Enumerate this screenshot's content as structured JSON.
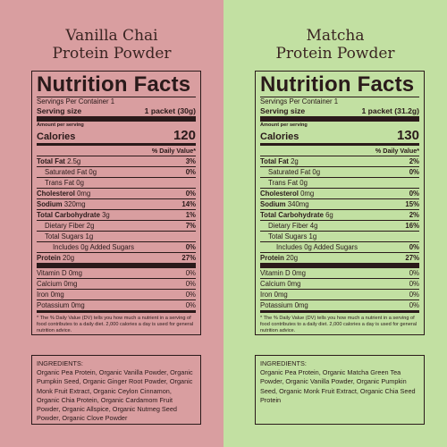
{
  "panels": [
    {
      "title_line1": "Vanilla Chai",
      "title_line2": "Protein Powder",
      "heading": "Nutrition Facts",
      "servings": "Servings Per Container 1",
      "serving_size_label": "Serving size",
      "serving_size_value": "1 packet (30g)",
      "amount_per_serving": "Amount per serving",
      "calories_label": "Calories",
      "calories_value": "120",
      "dv_header": "% Daily Value*",
      "rows": {
        "total_fat": {
          "label": "Total Fat",
          "amount": "2.5g",
          "dv": "3%"
        },
        "sat_fat": {
          "label": "Saturated Fat 0g",
          "dv": "0%"
        },
        "trans_fat": {
          "label": "Trans Fat 0g"
        },
        "cholesterol": {
          "label": "Cholesterol",
          "amount": "0mg",
          "dv": "0%"
        },
        "sodium": {
          "label": "Sodium",
          "amount": "320mg",
          "dv": "14%"
        },
        "carb": {
          "label": "Total Carbohydrate",
          "amount": "3g",
          "dv": "1%"
        },
        "fiber": {
          "label": "Dietary Fiber 2g",
          "dv": "7%"
        },
        "sugars": {
          "label": "Total Sugars 1g"
        },
        "added_sugars": {
          "label": "Includes 0g Added Sugars",
          "dv": "0%"
        },
        "protein": {
          "label": "Protein",
          "amount": "20g",
          "dv": "27%"
        },
        "vitd": {
          "label": "Vitamin D 0mg",
          "dv": "0%"
        },
        "calcium": {
          "label": "Calcium 0mg",
          "dv": "0%"
        },
        "iron": {
          "label": "Iron 0mg",
          "dv": "0%"
        },
        "potassium": {
          "label": "Potassium 0mg",
          "dv": "0%"
        }
      },
      "footnote": "* The % Daily Value (DV) tells you how much a nutrient in a serving of food contributes to a daily diet. 2,000 calories a day is used for general nutrition advice.",
      "ingredients_heading": "INGREDIENTS:",
      "ingredients_text": "Organic Pea Protein, Organic Vanilla Powder, Organic Pumpkin Seed, Organic Ginger Root Powder, Organic Monk Fruit Extract, Organic Ceylon Cinnamon, Organic Chia Protein, Organic Cardamom Fruit Powder, Organic Allspice, Organic Nutmeg Seed Powder, Organic Clove Powder"
    },
    {
      "title_line1": "Matcha",
      "title_line2": "Protein Powder",
      "heading": "Nutrition Facts",
      "servings": "Servings Per Container 1",
      "serving_size_label": "Serving size",
      "serving_size_value": "1 packet (31.2g)",
      "amount_per_serving": "Amount per serving",
      "calories_label": "Calories",
      "calories_value": "130",
      "dv_header": "% Daily Value*",
      "rows": {
        "total_fat": {
          "label": "Total Fat",
          "amount": "2g",
          "dv": "2%"
        },
        "sat_fat": {
          "label": "Saturated Fat 0g",
          "dv": "0%"
        },
        "trans_fat": {
          "label": "Trans Fat 0g"
        },
        "cholesterol": {
          "label": "Cholesterol",
          "amount": "0mg",
          "dv": "0%"
        },
        "sodium": {
          "label": "Sodium",
          "amount": "340mg",
          "dv": "15%"
        },
        "carb": {
          "label": "Total Carbohydrate",
          "amount": "6g",
          "dv": "2%"
        },
        "fiber": {
          "label": "Dietary Fiber 4g",
          "dv": "16%"
        },
        "sugars": {
          "label": "Total Sugars 1g"
        },
        "added_sugars": {
          "label": "Includes 0g Added Sugars",
          "dv": "0%"
        },
        "protein": {
          "label": "Protein",
          "amount": "20g",
          "dv": "27%"
        },
        "vitd": {
          "label": "Vitamin D 0mg",
          "dv": "0%"
        },
        "calcium": {
          "label": "Calcium 0mg",
          "dv": "0%"
        },
        "iron": {
          "label": "Iron 0mg",
          "dv": "0%"
        },
        "potassium": {
          "label": "Potassium 0mg",
          "dv": "0%"
        }
      },
      "footnote": "* The % Daily Value (DV) tells you how much a nutrient in a serving of food contributes to a daily diet. 2,000 calories a day is used for general nutrition advice.",
      "ingredients_heading": "INGREDIENTS:",
      "ingredients_text": "Organic Pea Protein, Organic Matcha Green Tea Powder, Organic Vanilla Powder, Organic Pumpkin Seed, Organic Monk Fruit Extract, Organic Chia Seed Protein"
    }
  ],
  "colors": {
    "left_bg": "#d99ea0",
    "right_bg": "#c2e0a2",
    "ink": "#2a1a1a"
  }
}
